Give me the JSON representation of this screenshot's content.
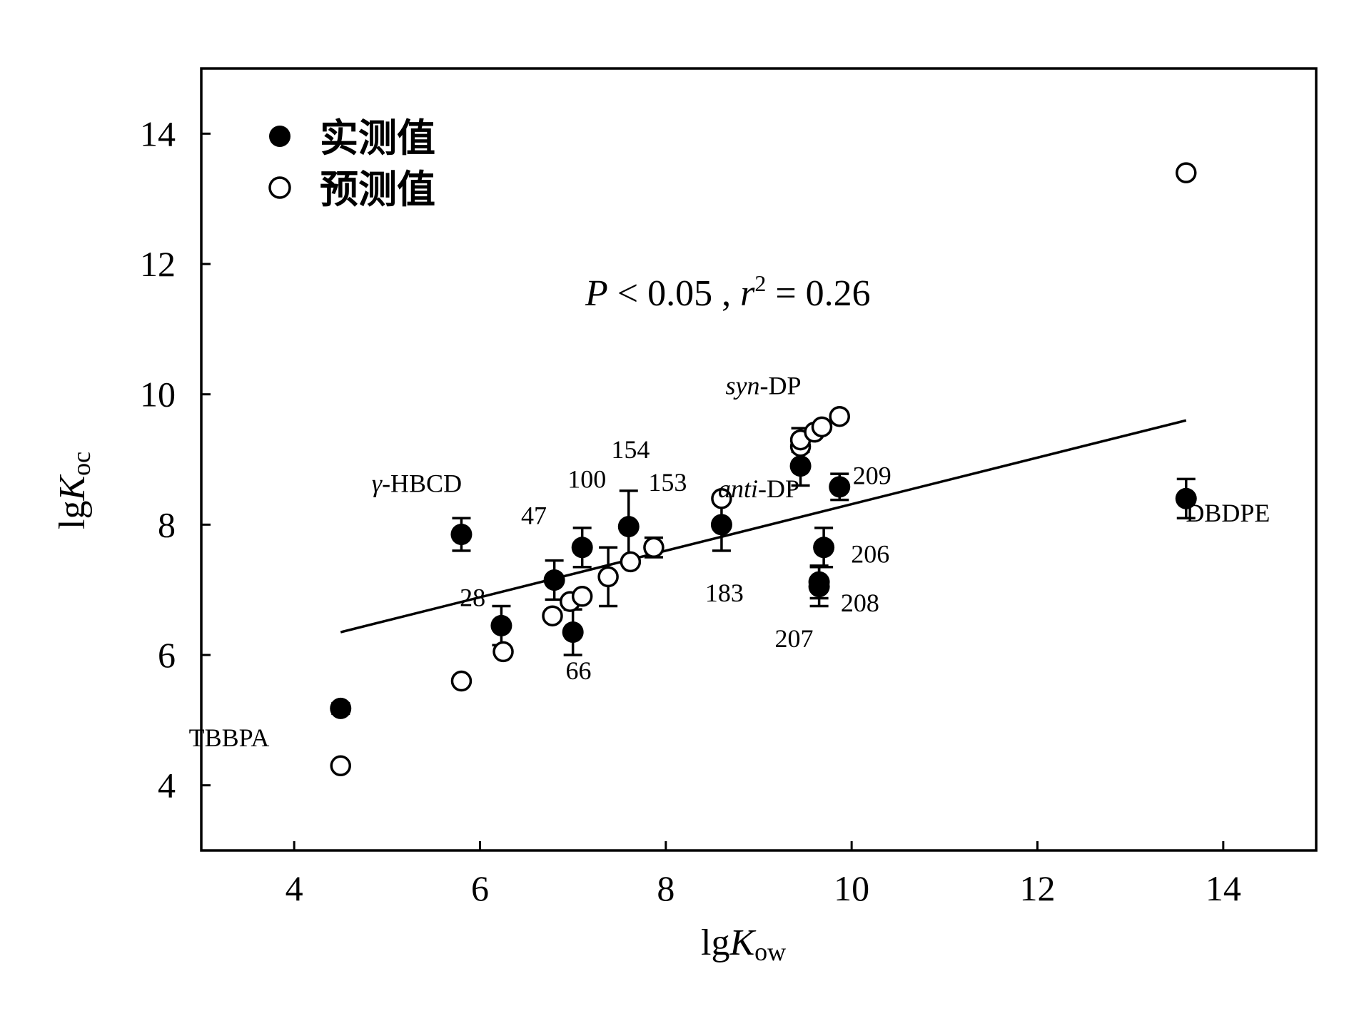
{
  "chart_data": {
    "type": "scatter",
    "xlabel": {
      "main": "lg",
      "italic": "K",
      "sub": "ow"
    },
    "ylabel": {
      "main": "lg",
      "italic": "K",
      "sub": "oc"
    },
    "xlim": [
      3,
      15
    ],
    "ylim": [
      3,
      15
    ],
    "xticks": [
      "4",
      "6",
      "8",
      "10",
      "12",
      "14"
    ],
    "yticks": [
      "4",
      "6",
      "8",
      "10",
      "12",
      "14"
    ],
    "grid": false,
    "legend_position": "top-left",
    "annotation": {
      "p": "P",
      "p_rest": " < 0.05 , ",
      "r": "r",
      "sup": "2",
      "r_rest": " = 0.26"
    },
    "series": [
      {
        "name": "实测值",
        "marker": "filled-circle",
        "points": [
          {
            "x": 4.5,
            "y": 5.18,
            "err": 0.08
          },
          {
            "x": 5.8,
            "y": 7.85,
            "err": 0.25
          },
          {
            "x": 6.23,
            "y": 6.45,
            "err": 0.3
          },
          {
            "x": 6.8,
            "y": 7.15,
            "err": 0.3
          },
          {
            "x": 7.0,
            "y": 6.35,
            "err": 0.35
          },
          {
            "x": 7.1,
            "y": 7.65,
            "err": 0.3
          },
          {
            "x": 7.6,
            "y": 7.97,
            "err": 0.55
          },
          {
            "x": 8.6,
            "y": 8.0,
            "err": 0.4
          },
          {
            "x": 9.45,
            "y": 8.9,
            "err": 0.3
          },
          {
            "x": 9.65,
            "y": 7.12,
            "err": 0.25
          },
          {
            "x": 9.65,
            "y": 7.05,
            "err": 0.3
          },
          {
            "x": 9.7,
            "y": 7.65,
            "err": 0.3
          },
          {
            "x": 9.87,
            "y": 8.58,
            "err": 0.2
          },
          {
            "x": 13.6,
            "y": 8.4,
            "err": 0.3
          }
        ]
      },
      {
        "name": "预测值",
        "marker": "open-circle",
        "points": [
          {
            "x": 4.5,
            "y": 4.3
          },
          {
            "x": 5.8,
            "y": 5.6
          },
          {
            "x": 6.25,
            "y": 6.05
          },
          {
            "x": 6.78,
            "y": 6.6
          },
          {
            "x": 6.97,
            "y": 6.82
          },
          {
            "x": 7.1,
            "y": 6.9
          },
          {
            "x": 7.38,
            "y": 7.2,
            "err": 0.45
          },
          {
            "x": 7.62,
            "y": 7.43
          },
          {
            "x": 7.87,
            "y": 7.65,
            "err": 0.15
          },
          {
            "x": 8.6,
            "y": 8.4
          },
          {
            "x": 9.45,
            "y": 9.2
          },
          {
            "x": 9.45,
            "y": 9.3,
            "err": 0.18
          },
          {
            "x": 9.6,
            "y": 9.42
          },
          {
            "x": 9.68,
            "y": 9.5
          },
          {
            "x": 9.87,
            "y": 9.66
          },
          {
            "x": 13.6,
            "y": 13.4
          }
        ]
      }
    ],
    "regression_line": {
      "x": [
        4.5,
        13.6
      ],
      "y": [
        6.35,
        9.6
      ]
    },
    "point_labels": [
      {
        "text": "TBBPA",
        "x": 3.3,
        "y": 4.6
      },
      {
        "text": "28",
        "x": 5.92,
        "y": 6.75
      },
      {
        "text": "47",
        "x": 6.58,
        "y": 8.01
      },
      {
        "text": "66",
        "x": 7.06,
        "y": 5.63
      },
      {
        "text": "100",
        "x": 7.15,
        "y": 8.57
      },
      {
        "text": "154",
        "x": 7.62,
        "y": 9.02
      },
      {
        "text": "153",
        "x": 8.02,
        "y": 8.52
      },
      {
        "text": "183",
        "x": 8.63,
        "y": 6.82
      },
      {
        "text": "209",
        "x": 10.22,
        "y": 8.62
      },
      {
        "text": "206",
        "x": 10.2,
        "y": 7.42
      },
      {
        "text": "208",
        "x": 10.09,
        "y": 6.67
      },
      {
        "text": "207",
        "x": 9.38,
        "y": 6.12
      },
      {
        "text": "DBDPE",
        "x": 14.05,
        "y": 8.05
      }
    ],
    "italic_labels": [
      {
        "italic": "γ",
        "rest": "-HBCD",
        "x": 5.32,
        "y": 8.5
      },
      {
        "italic": "syn",
        "rest": "-DP",
        "x": 9.05,
        "y": 10.0
      },
      {
        "italic": "anti",
        "rest": "-DP",
        "x": 9.0,
        "y": 8.42
      }
    ]
  }
}
